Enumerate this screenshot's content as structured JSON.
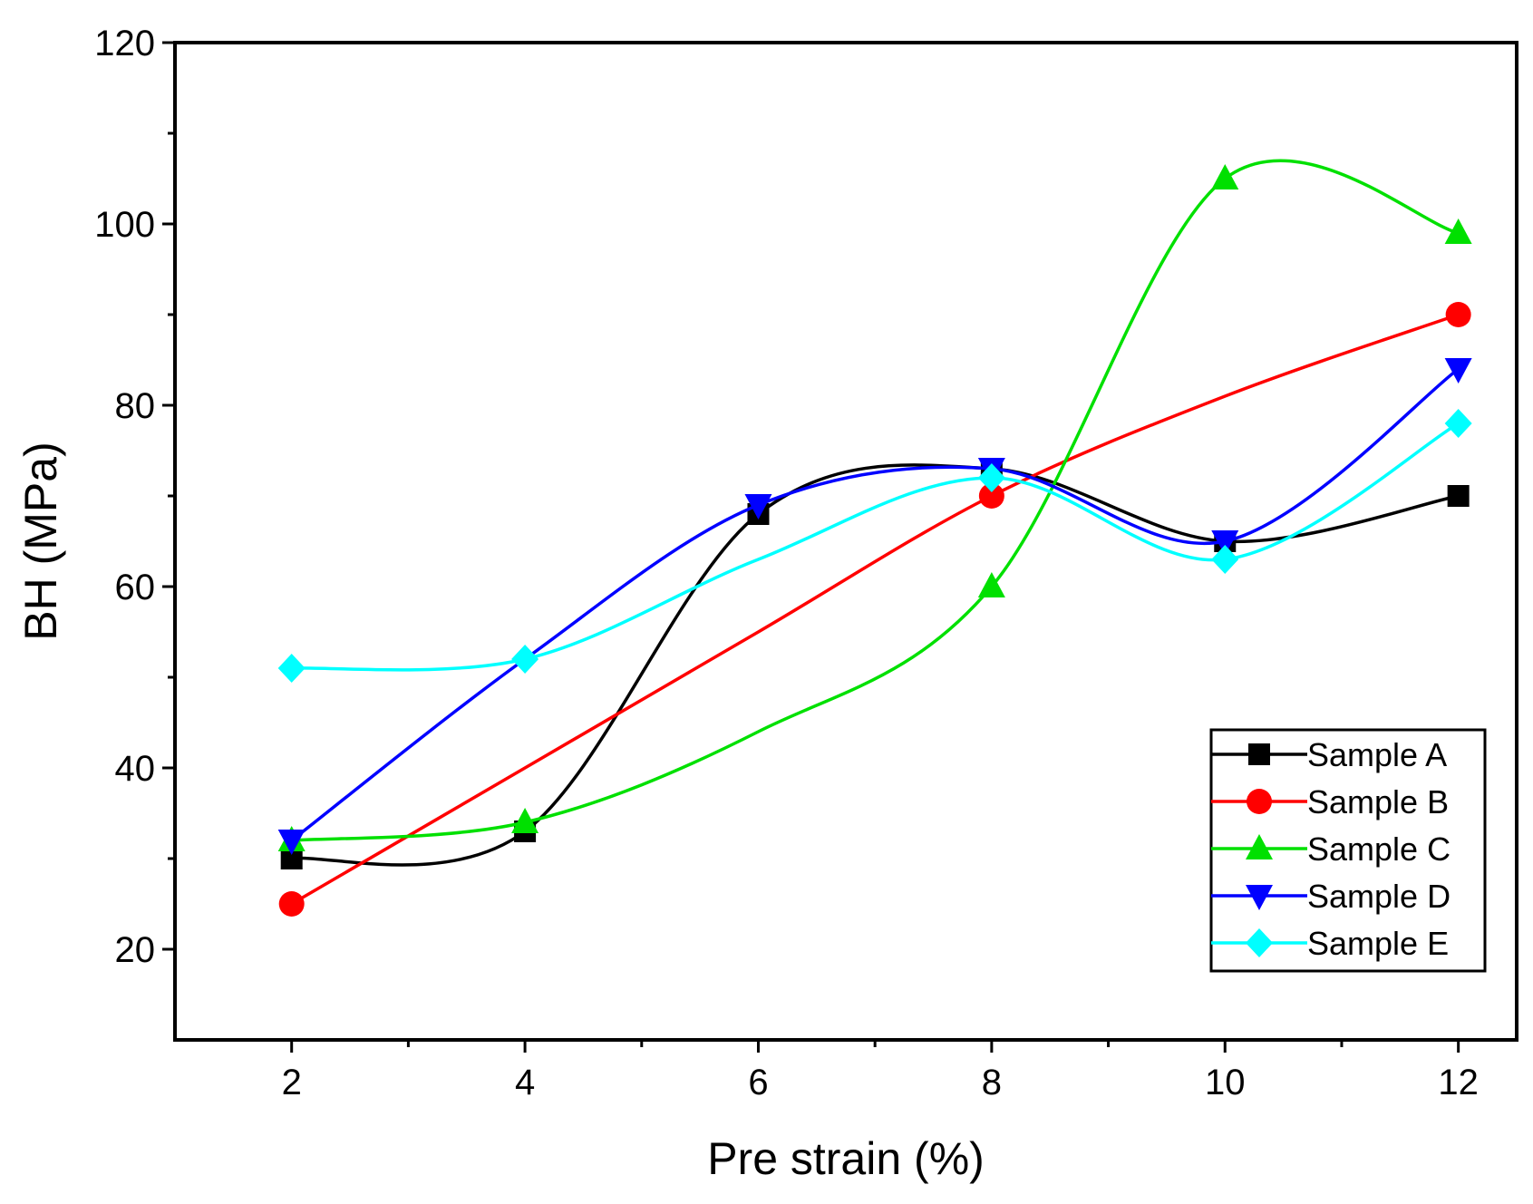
{
  "chart_data": {
    "type": "line",
    "title": "",
    "xlabel": "Pre strain (%)",
    "ylabel": "BH (MPa)",
    "xlim": [
      1,
      12.5
    ],
    "ylim": [
      10,
      120
    ],
    "x_ticks": [
      2,
      4,
      6,
      8,
      10,
      12
    ],
    "y_ticks": [
      20,
      40,
      60,
      80,
      100,
      120
    ],
    "x_minor_ticks": [
      3,
      5,
      7,
      9,
      11
    ],
    "y_minor_ticks": [
      30,
      50,
      70,
      90,
      110
    ],
    "grid": false,
    "legend_position": "bottom-right",
    "x": [
      2,
      4,
      6,
      8,
      10,
      12
    ],
    "series": [
      {
        "name": "Sample A",
        "color": "#000000",
        "marker": "square",
        "values": [
          30,
          33,
          68,
          73,
          65,
          70
        ]
      },
      {
        "name": "Sample B",
        "color": "#ff0000",
        "marker": "circle",
        "values": [
          25,
          40,
          55,
          70,
          81,
          90
        ]
      },
      {
        "name": "Sample C",
        "color": "#00e000",
        "marker": "triangle-up",
        "values": [
          32,
          34,
          44,
          60,
          105,
          99
        ]
      },
      {
        "name": "Sample D",
        "color": "#0000ff",
        "marker": "triangle-down",
        "values": [
          32,
          52,
          69,
          73,
          65,
          84
        ]
      },
      {
        "name": "Sample E",
        "color": "#00ffff",
        "marker": "diamond",
        "values": [
          51,
          52,
          63,
          72,
          63,
          78
        ]
      }
    ],
    "marker_x": [
      [
        2,
        4,
        6,
        8,
        10,
        12
      ],
      [
        2,
        8,
        12
      ],
      [
        2,
        4,
        8,
        10,
        12
      ],
      [
        2,
        6,
        8,
        10,
        12
      ],
      [
        2,
        4,
        8,
        10,
        12
      ]
    ]
  }
}
